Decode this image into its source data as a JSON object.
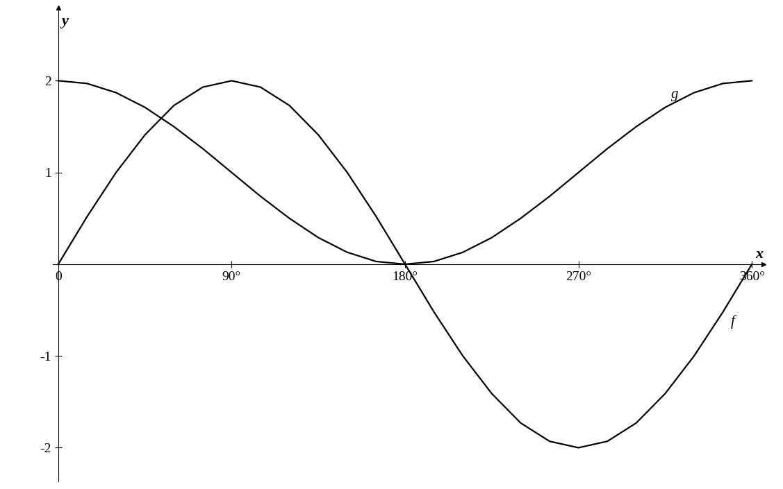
{
  "chart_data": {
    "type": "line",
    "x_label": "x",
    "y_label": "y",
    "x": [
      0,
      15,
      30,
      45,
      60,
      75,
      90,
      105,
      120,
      135,
      150,
      165,
      180,
      195,
      210,
      225,
      240,
      255,
      270,
      285,
      300,
      315,
      330,
      345,
      360
    ],
    "series": [
      {
        "name": "f",
        "color": "#000000",
        "values": [
          0,
          0.52,
          1,
          1.41,
          1.73,
          1.93,
          2,
          1.93,
          1.73,
          1.41,
          1,
          0.52,
          0,
          -0.52,
          -1,
          -1.41,
          -1.73,
          -1.93,
          -2,
          -1.93,
          -1.73,
          -1.41,
          -1,
          -0.52,
          0
        ]
      },
      {
        "name": "g",
        "color": "#000000",
        "values": [
          2,
          1.97,
          1.87,
          1.71,
          1.5,
          1.26,
          1,
          0.74,
          0.5,
          0.29,
          0.13,
          0.03,
          0,
          0.03,
          0.13,
          0.29,
          0.5,
          0.74,
          1,
          1.26,
          1.5,
          1.71,
          1.87,
          1.97,
          2
        ]
      }
    ],
    "xlim": [
      -3,
      366
    ],
    "ylim": [
      -2.37,
      2.8
    ],
    "xticks": [
      0,
      {
        "value": 90,
        "label": "90°"
      },
      {
        "value": 180,
        "label": "180°"
      },
      {
        "value": 270,
        "label": "270°"
      },
      {
        "value": 360,
        "label": "360°"
      }
    ],
    "yticks": [
      -2,
      -1,
      1,
      2
    ],
    "grid": false
  }
}
